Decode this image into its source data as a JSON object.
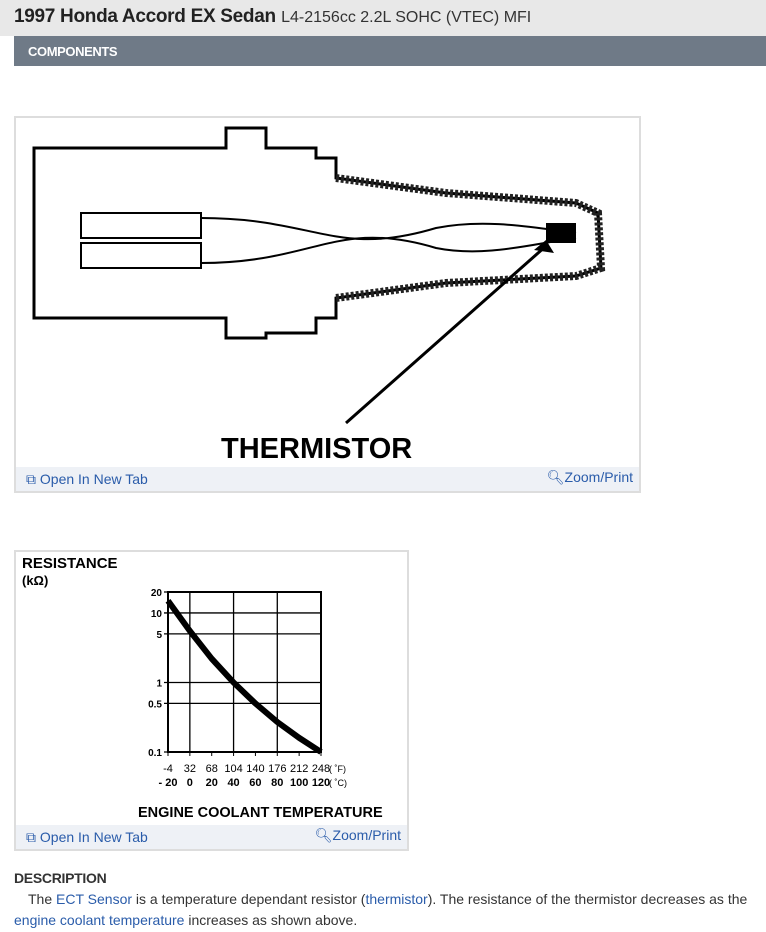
{
  "header": {
    "title": "1997 Honda Accord EX Sedan",
    "subtitle": "L4-2156cc 2.2L SOHC (VTEC) MFI"
  },
  "section": {
    "label": "COMPONENTS"
  },
  "figure1": {
    "label": "THERMISTOR",
    "open_label": "Open In New Tab",
    "zoom_label": "Zoom/Print"
  },
  "figure2": {
    "open_label": "Open In New Tab",
    "zoom_label": "Zoom/Print"
  },
  "chart_data": {
    "type": "line",
    "title": "",
    "ylabel": "RESISTANCE",
    "ylabel_unit": "(kΩ)",
    "xlabel": "ENGINE COOLANT TEMPERATURE",
    "yscale": "log",
    "ylim": [
      0.1,
      20
    ],
    "yticks": [
      "20",
      "10",
      "5",
      "1",
      "0.5",
      "0.1"
    ],
    "xticks_f": [
      "-4",
      "32",
      "68",
      "104",
      "140",
      "176",
      "212",
      "248"
    ],
    "xticks_c": [
      "- 20",
      "0",
      "20",
      "40",
      "60",
      "80",
      "100",
      "120"
    ],
    "xunit_f": "( ˚F)",
    "xunit_c": "( ˚C)",
    "xlim_c": [
      -20,
      120
    ],
    "grid": true,
    "x_c": [
      -20,
      0,
      20,
      40,
      60,
      80,
      100,
      120
    ],
    "values": [
      15,
      5.5,
      2.2,
      1.0,
      0.5,
      0.27,
      0.16,
      0.1
    ]
  },
  "description": {
    "heading": "DESCRIPTION",
    "t1": "The ",
    "link1": "ECT Sensor",
    "t2": " is a temperature dependant resistor (",
    "link2": "thermistor",
    "t3": "). The resistance of the thermistor decreases as the ",
    "link3": "engine coolant temperature",
    "t4": " increases as shown above."
  },
  "colors": {
    "section_bar": "#6f7a87",
    "link": "#2a5caa",
    "header_bg": "#e8e8e8"
  }
}
